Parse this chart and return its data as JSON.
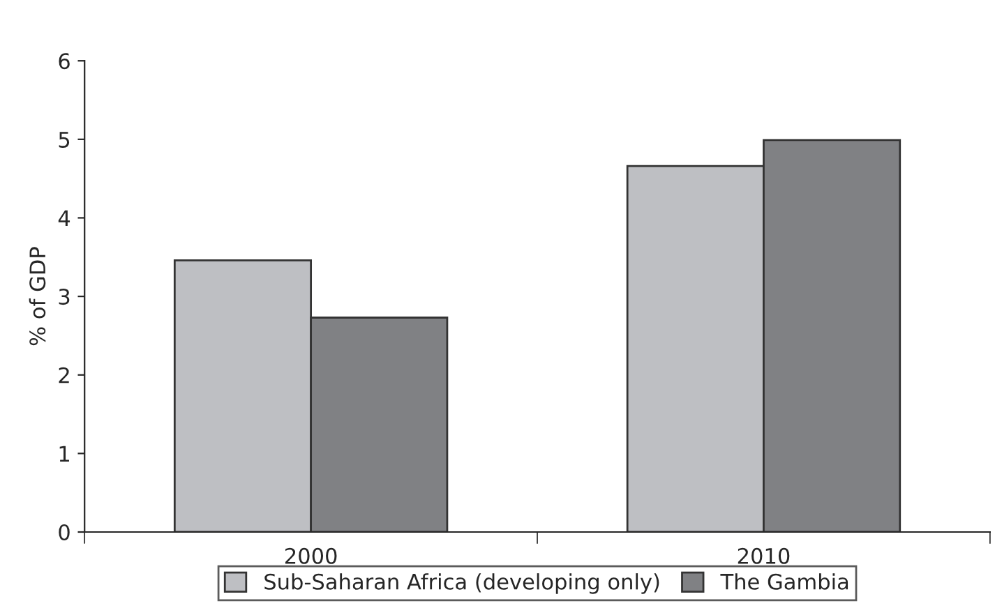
{
  "chart_data": {
    "type": "bar",
    "ylabel": "% of GDP",
    "categories": [
      "2000",
      "2010"
    ],
    "series": [
      {
        "name": "Sub-Saharan Africa (developing only)",
        "color": "#bebfc3",
        "values": [
          3.46,
          4.66
        ]
      },
      {
        "name": "The Gambia",
        "color": "#808184",
        "values": [
          2.73,
          4.99
        ]
      }
    ],
    "ylim": [
      0,
      6
    ],
    "yticks": [
      0,
      1,
      2,
      3,
      4,
      5,
      6
    ],
    "grid": false,
    "legend": "bottom"
  }
}
